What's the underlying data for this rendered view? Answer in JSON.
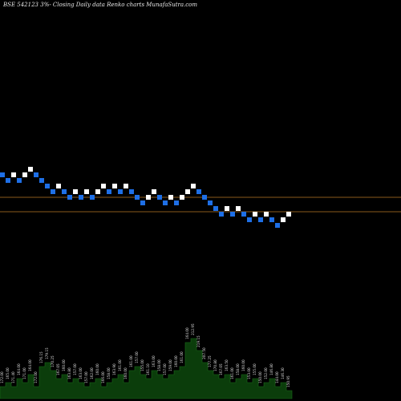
{
  "header": {
    "symbol": "BSE 542123",
    "rest": "3%-  Closing Daily data  Renko  charts MunafaSutra.com"
  },
  "colors": {
    "background": "#000000",
    "up_brick": "#ffffff",
    "down_brick": "#1e6fe6",
    "reference_line": "#8a5a1c",
    "volume_fill": "#0b3d0b",
    "label_text": "#d8d8d8"
  },
  "chart_data": {
    "type": "renko",
    "brick_size": "3%",
    "bricks": [
      {
        "dir": "down",
        "level": 0
      },
      {
        "dir": "down",
        "level": 1
      },
      {
        "dir": "up",
        "level": 0
      },
      {
        "dir": "down",
        "level": 1
      },
      {
        "dir": "up",
        "level": 0
      },
      {
        "dir": "up",
        "level": -1
      },
      {
        "dir": "down",
        "level": 0
      },
      {
        "dir": "down",
        "level": 1
      },
      {
        "dir": "down",
        "level": 2
      },
      {
        "dir": "down",
        "level": 3
      },
      {
        "dir": "up",
        "level": 2
      },
      {
        "dir": "down",
        "level": 3
      },
      {
        "dir": "down",
        "level": 4
      },
      {
        "dir": "up",
        "level": 3
      },
      {
        "dir": "down",
        "level": 4
      },
      {
        "dir": "up",
        "level": 3
      },
      {
        "dir": "down",
        "level": 4
      },
      {
        "dir": "up",
        "level": 3
      },
      {
        "dir": "up",
        "level": 2
      },
      {
        "dir": "down",
        "level": 3
      },
      {
        "dir": "up",
        "level": 2
      },
      {
        "dir": "down",
        "level": 3
      },
      {
        "dir": "up",
        "level": 2
      },
      {
        "dir": "down",
        "level": 3
      },
      {
        "dir": "down",
        "level": 4
      },
      {
        "dir": "down",
        "level": 5
      },
      {
        "dir": "up",
        "level": 4
      },
      {
        "dir": "up",
        "level": 3
      },
      {
        "dir": "down",
        "level": 4
      },
      {
        "dir": "down",
        "level": 5
      },
      {
        "dir": "up",
        "level": 4
      },
      {
        "dir": "down",
        "level": 5
      },
      {
        "dir": "up",
        "level": 4
      },
      {
        "dir": "up",
        "level": 3
      },
      {
        "dir": "up",
        "level": 2
      },
      {
        "dir": "down",
        "level": 3
      },
      {
        "dir": "down",
        "level": 4
      },
      {
        "dir": "down",
        "level": 5
      },
      {
        "dir": "down",
        "level": 6
      },
      {
        "dir": "down",
        "level": 7
      },
      {
        "dir": "up",
        "level": 6
      },
      {
        "dir": "down",
        "level": 7
      },
      {
        "dir": "up",
        "level": 6
      },
      {
        "dir": "down",
        "level": 7
      },
      {
        "dir": "down",
        "level": 8
      },
      {
        "dir": "up",
        "level": 7
      },
      {
        "dir": "down",
        "level": 8
      },
      {
        "dir": "up",
        "level": 7
      },
      {
        "dir": "down",
        "level": 8
      },
      {
        "dir": "down",
        "level": 9
      },
      {
        "dir": "up",
        "level": 8
      },
      {
        "dir": "up",
        "level": 7
      }
    ],
    "reference_lines": [
      "upper",
      "lower"
    ],
    "volume": [
      3,
      4,
      3,
      5,
      4,
      6,
      3,
      8,
      9,
      7,
      5,
      6,
      4,
      5,
      4,
      3,
      4,
      5,
      3,
      4,
      5,
      6,
      4,
      7,
      8,
      6,
      5,
      7,
      6,
      5,
      6,
      7,
      8,
      14,
      15,
      12,
      9,
      7,
      6,
      5,
      6,
      4,
      5,
      6,
      4,
      5,
      3,
      4,
      5,
      3,
      4,
      2
    ],
    "price_labels": [
      "172.00",
      "165.00",
      "171.40",
      "164.00",
      "171.00",
      "164.00",
      "172.00",
      "176.15",
      "179.15",
      "170.25",
      "167.05",
      "160.00",
      "163.80",
      "157.00",
      "163.00",
      "157.00",
      "162.00",
      "160.00",
      "166.00",
      "158.00",
      "163.90",
      "161.00",
      "160.00",
      "161.00",
      "157.00",
      "155.00",
      "161.10",
      "163.00",
      "158.00",
      "157.00",
      "159.00",
      "160.00",
      "161.00",
      "164.00",
      "212.95",
      "219.15",
      "207.50",
      "177.25",
      "170.80",
      "167.05",
      "163.50",
      "161.00",
      "158.00",
      "160.00",
      "153.00",
      "155.00",
      "150.00",
      "152.00",
      "146.80",
      "144.00",
      "146.30",
      "150.95"
    ]
  }
}
